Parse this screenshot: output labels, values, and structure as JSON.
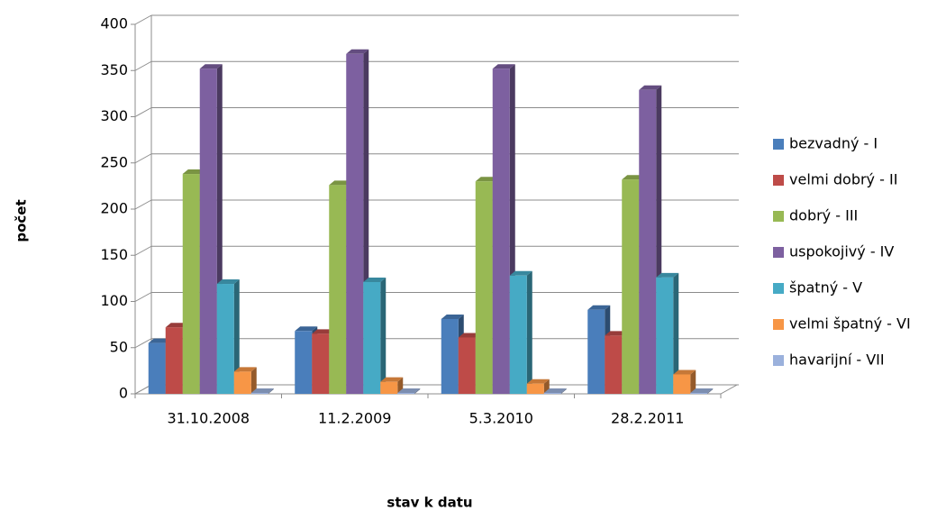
{
  "chart_data": {
    "type": "bar3d",
    "x_label": "stav k datu",
    "y_label": "počet",
    "categories": [
      "31.10.2008",
      "11.2.2009",
      "5.3.2010",
      "28.2.2011"
    ],
    "series": [
      {
        "name": "bezvadný - I",
        "color": "#4a7ebb",
        "values": [
          55,
          68,
          81,
          91
        ]
      },
      {
        "name": "velmi dobrý - II",
        "color": "#be4b48",
        "values": [
          72,
          65,
          61,
          63
        ]
      },
      {
        "name": "dobrý - III",
        "color": "#98b954",
        "values": [
          238,
          226,
          230,
          232
        ]
      },
      {
        "name": "uspokojivý - IV",
        "color": "#7d60a0",
        "values": [
          352,
          368,
          352,
          329
        ]
      },
      {
        "name": "špatný - V",
        "color": "#46aac5",
        "values": [
          119,
          121,
          128,
          126
        ]
      },
      {
        "name": "velmi špatný - VI",
        "color": "#f79646",
        "values": [
          24,
          13,
          11,
          21
        ]
      },
      {
        "name": "havarijní - VII",
        "color": "#9bb1dc",
        "values": [
          1,
          1,
          1,
          1
        ]
      }
    ],
    "ylim": [
      0,
      400
    ],
    "yticks": [
      0,
      50,
      100,
      150,
      200,
      250,
      300,
      350,
      400
    ],
    "grid": true,
    "legend": "right"
  }
}
